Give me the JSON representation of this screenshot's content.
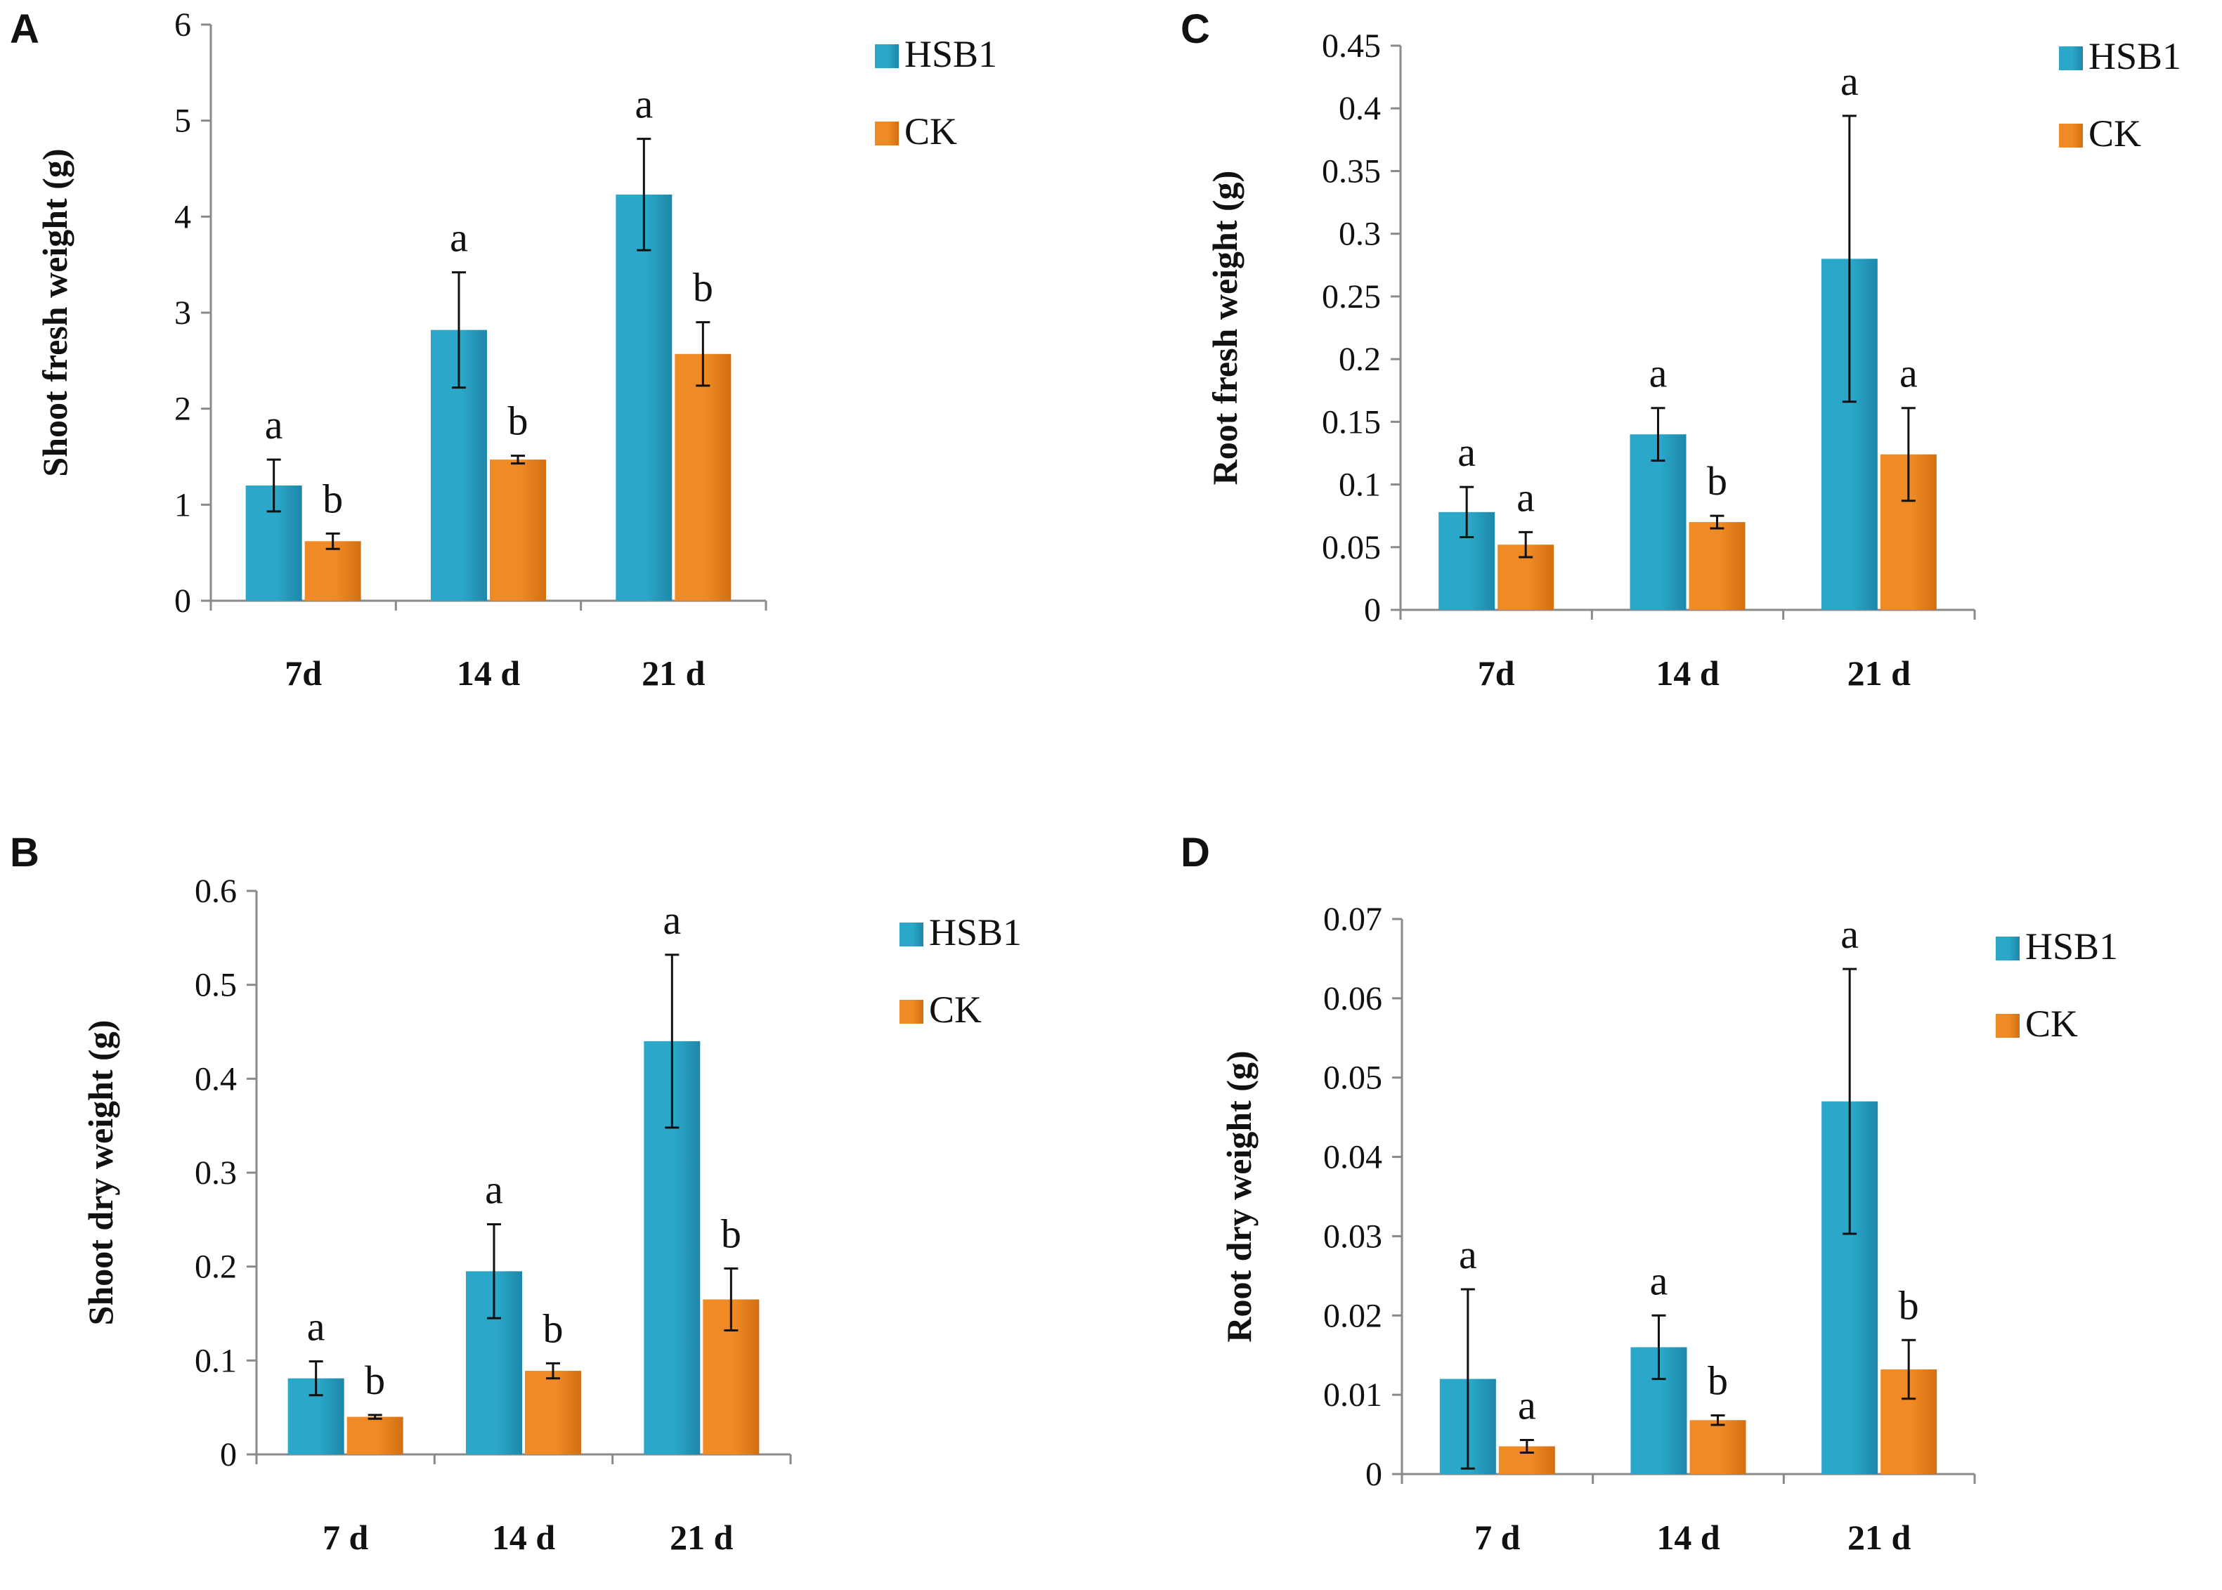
{
  "figure": {
    "colors": {
      "HSB1": "#2aa7c9",
      "HSB1_dark": "#1e87a8",
      "CK": "#f08a24",
      "CK_dark": "#d26f12"
    }
  },
  "chart_data": [
    {
      "panel": "A",
      "type": "bar",
      "ylabel": "Shoot fresh weight (g)",
      "categories": [
        "7d",
        "14 d",
        "21 d"
      ],
      "ylim": [
        0,
        6
      ],
      "yticks": [
        "0",
        "1",
        "2",
        "3",
        "4",
        "5",
        "6"
      ],
      "ytick_values": [
        0,
        1,
        2,
        3,
        4,
        5,
        6
      ],
      "legend": [
        "HSB1",
        "CK"
      ],
      "series": [
        {
          "name": "HSB1",
          "values": [
            1.2,
            2.82,
            4.23
          ],
          "errors": [
            0.27,
            0.6,
            0.58
          ],
          "letters": [
            "a",
            "a",
            "a"
          ]
        },
        {
          "name": "CK",
          "values": [
            0.62,
            1.47,
            2.57
          ],
          "errors": [
            0.08,
            0.04,
            0.33
          ],
          "letters": [
            "b",
            "b",
            "b"
          ]
        }
      ]
    },
    {
      "panel": "C",
      "type": "bar",
      "ylabel": "Root fresh weight (g)",
      "categories": [
        "7d",
        "14 d",
        "21 d"
      ],
      "ylim": [
        0,
        0.45
      ],
      "yticks": [
        "0",
        "0.05",
        "0.1",
        "0.15",
        "0.2",
        "0.25",
        "0.3",
        "0.35",
        "0.4",
        "0.45"
      ],
      "ytick_values": [
        0,
        0.05,
        0.1,
        0.15,
        0.2,
        0.25,
        0.3,
        0.35,
        0.4,
        0.45
      ],
      "legend": [
        "HSB1",
        "CK"
      ],
      "series": [
        {
          "name": "HSB1",
          "values": [
            0.078,
            0.14,
            0.28
          ],
          "errors": [
            0.02,
            0.021,
            0.114
          ],
          "letters": [
            "a",
            "a",
            "a"
          ]
        },
        {
          "name": "CK",
          "values": [
            0.052,
            0.07,
            0.124
          ],
          "errors": [
            0.01,
            0.005,
            0.037
          ],
          "letters": [
            "a",
            "b",
            "a"
          ]
        }
      ]
    },
    {
      "panel": "B",
      "type": "bar",
      "ylabel": "Shoot dry weight (g)",
      "categories": [
        "7 d",
        "14 d",
        "21 d"
      ],
      "ylim": [
        0,
        0.6
      ],
      "yticks": [
        "0",
        "0.1",
        "0.2",
        "0.3",
        "0.4",
        "0.5",
        "0.6"
      ],
      "ytick_values": [
        0,
        0.1,
        0.2,
        0.3,
        0.4,
        0.5,
        0.6
      ],
      "legend": [
        "HSB1",
        "CK"
      ],
      "series": [
        {
          "name": "HSB1",
          "values": [
            0.081,
            0.195,
            0.44
          ],
          "errors": [
            0.018,
            0.05,
            0.092
          ],
          "letters": [
            "a",
            "a",
            "a"
          ]
        },
        {
          "name": "CK",
          "values": [
            0.04,
            0.089,
            0.165
          ],
          "errors": [
            0.002,
            0.008,
            0.033
          ],
          "letters": [
            "b",
            "b",
            "b"
          ]
        }
      ]
    },
    {
      "panel": "D",
      "type": "bar",
      "ylabel": "Root dry weight (g)",
      "categories": [
        "7 d",
        "14 d",
        "21 d"
      ],
      "ylim": [
        0,
        0.07
      ],
      "yticks": [
        "0",
        "0.01",
        "0.02",
        "0.03",
        "0.04",
        "0.05",
        "0.06",
        "0.07"
      ],
      "ytick_values": [
        0,
        0.01,
        0.02,
        0.03,
        0.04,
        0.05,
        0.06,
        0.07
      ],
      "legend": [
        "HSB1",
        "CK"
      ],
      "series": [
        {
          "name": "HSB1",
          "values": [
            0.012,
            0.016,
            0.047
          ],
          "errors": [
            0.0113,
            0.004,
            0.0167
          ],
          "letters": [
            "a",
            "a",
            "a"
          ]
        },
        {
          "name": "CK",
          "values": [
            0.0035,
            0.0068,
            0.0132
          ],
          "errors": [
            0.0008,
            0.0006,
            0.0037
          ],
          "letters": [
            "a",
            "b",
            "b"
          ]
        }
      ]
    }
  ]
}
